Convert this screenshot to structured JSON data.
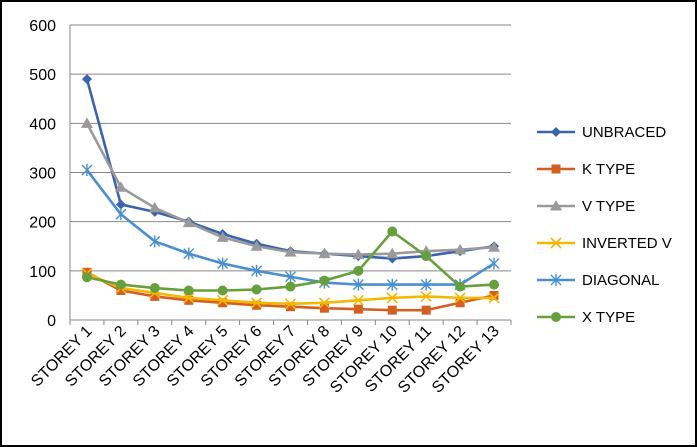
{
  "chart_data": {
    "type": "line",
    "title": "",
    "xlabel": "",
    "ylabel": "",
    "ylim": [
      0,
      600
    ],
    "yticks": [
      0,
      100,
      200,
      300,
      400,
      500,
      600
    ],
    "grid": "horizontal",
    "legend_position": "right",
    "categories": [
      "STOREY 1",
      "STOREY 2",
      "STOREY 3",
      "STOREY 4",
      "STOREY 5",
      "STOREY 6",
      "STOREY 7",
      "STOREY 8",
      "STOREY 9",
      "STOREY 10",
      "STOREY 11",
      "STOREY 12",
      "STOREY 13"
    ],
    "series": [
      {
        "name": "UNBRACED",
        "color": "#3a64ad",
        "marker": "diamond",
        "values": [
          490,
          235,
          220,
          200,
          175,
          155,
          140,
          135,
          130,
          125,
          130,
          140,
          150
        ]
      },
      {
        "name": "K TYPE",
        "color": "#d35f23",
        "marker": "square",
        "values": [
          97,
          60,
          48,
          40,
          35,
          30,
          27,
          24,
          22,
          20,
          20,
          35,
          50
        ]
      },
      {
        "name": "V TYPE",
        "color": "#9a9a9a",
        "marker": "triangle",
        "values": [
          400,
          270,
          228,
          198,
          168,
          150,
          138,
          135,
          133,
          135,
          140,
          143,
          148
        ]
      },
      {
        "name": "INVERTED V",
        "color": "#f5b800",
        "marker": "x",
        "values": [
          95,
          65,
          55,
          45,
          40,
          35,
          33,
          35,
          40,
          45,
          48,
          45,
          45
        ]
      },
      {
        "name": "DIAGONAL",
        "color": "#4a8fd0",
        "marker": "star",
        "values": [
          305,
          215,
          160,
          135,
          115,
          100,
          88,
          76,
          72,
          72,
          72,
          72,
          115
        ]
      },
      {
        "name": "X TYPE",
        "color": "#66a03c",
        "marker": "circle",
        "values": [
          87,
          72,
          65,
          60,
          60,
          62,
          68,
          80,
          100,
          180,
          130,
          68,
          72
        ]
      }
    ]
  }
}
